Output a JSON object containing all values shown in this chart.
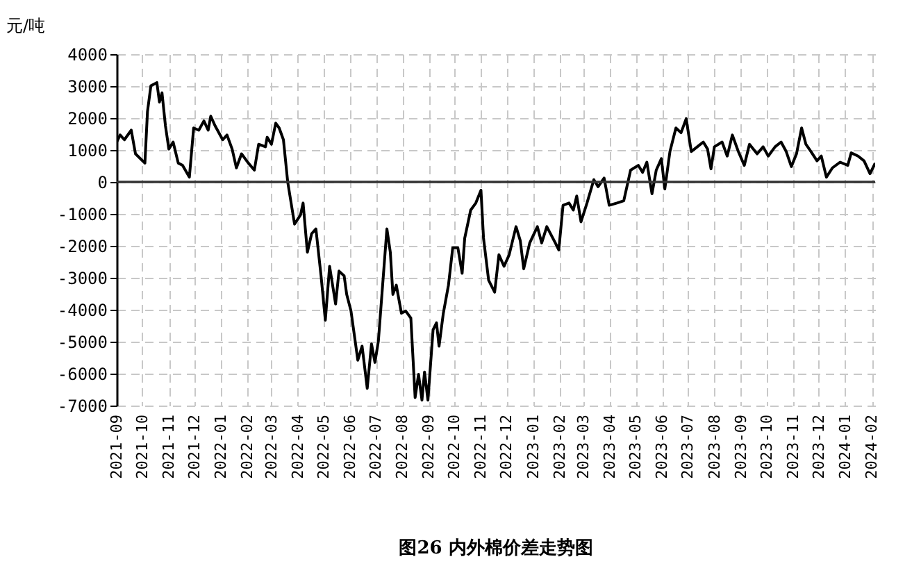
{
  "chart_data": {
    "type": "line",
    "title": "图26   内外棉价差走势图",
    "ylabel": "元/吨",
    "xlim": [
      "2021-09-01",
      "2024-02-05"
    ],
    "xticks": [
      "2021-09",
      "2021-10",
      "2021-11",
      "2021-12",
      "2022-01",
      "2022-02",
      "2022-03",
      "2022-04",
      "2022-05",
      "2022-06",
      "2022-07",
      "2022-08",
      "2022-09",
      "2022-10",
      "2022-11",
      "2022-12",
      "2023-01",
      "2023-02",
      "2023-03",
      "2023-04",
      "2023-05",
      "2023-06",
      "2023-07",
      "2023-08",
      "2023-09",
      "2023-10",
      "2023-11",
      "2023-12",
      "2024-01",
      "2024-02"
    ],
    "ylim": [
      -7000,
      4000
    ],
    "yticks": [
      -7000,
      -6000,
      -5000,
      -4000,
      -3000,
      -2000,
      -1000,
      0,
      1000,
      2000,
      3000,
      4000
    ],
    "grid": true,
    "ref_lines": [
      {
        "axis": "y",
        "value": 0,
        "color": "#333333"
      }
    ],
    "series": [
      {
        "color": "#000000",
        "x": [
          "2021-09-01",
          "2021-09-05",
          "2021-09-10",
          "2021-09-18",
          "2021-09-23",
          "2021-10-04",
          "2021-10-07",
          "2021-10-11",
          "2021-10-18",
          "2021-10-21",
          "2021-10-24",
          "2021-10-28",
          "2021-11-01",
          "2021-11-06",
          "2021-11-12",
          "2021-11-17",
          "2021-11-25",
          "2021-11-30",
          "2021-12-06",
          "2021-12-12",
          "2021-12-17",
          "2021-12-20",
          "2021-12-25",
          "2022-01-03",
          "2022-01-08",
          "2022-01-14",
          "2022-01-19",
          "2022-01-25",
          "2022-02-02",
          "2022-02-09",
          "2022-02-14",
          "2022-02-22",
          "2022-02-24",
          "2022-03-01",
          "2022-03-06",
          "2022-03-10",
          "2022-03-15",
          "2022-03-20",
          "2022-03-28",
          "2022-04-04",
          "2022-04-07",
          "2022-04-12",
          "2022-04-17",
          "2022-04-22",
          "2022-04-28",
          "2022-05-03",
          "2022-05-08",
          "2022-05-15",
          "2022-05-19",
          "2022-05-25",
          "2022-05-28",
          "2022-06-02",
          "2022-06-10",
          "2022-06-15",
          "2022-06-21",
          "2022-06-26",
          "2022-06-30",
          "2022-07-04",
          "2022-07-09",
          "2022-07-14",
          "2022-07-18",
          "2022-07-21",
          "2022-07-25",
          "2022-07-31",
          "2022-08-05",
          "2022-08-11",
          "2022-08-16",
          "2022-08-20",
          "2022-08-24",
          "2022-08-27",
          "2022-08-31",
          "2022-09-06",
          "2022-09-10",
          "2022-09-13",
          "2022-09-18",
          "2022-09-24",
          "2022-09-29",
          "2022-10-05",
          "2022-10-10",
          "2022-10-13",
          "2022-10-20",
          "2022-10-26",
          "2022-11-01",
          "2022-11-04",
          "2022-11-10",
          "2022-11-17",
          "2022-11-22",
          "2022-11-28",
          "2022-12-04",
          "2022-12-12",
          "2022-12-17",
          "2022-12-21",
          "2022-12-28",
          "2023-01-06",
          "2023-01-11",
          "2023-01-17",
          "2023-01-27",
          "2023-01-31",
          "2023-02-05",
          "2023-02-12",
          "2023-02-17",
          "2023-02-21",
          "2023-02-26",
          "2023-03-05",
          "2023-03-13",
          "2023-03-18",
          "2023-03-25",
          "2023-03-31",
          "2023-04-09",
          "2023-04-17",
          "2023-04-25",
          "2023-05-04",
          "2023-05-09",
          "2023-05-14",
          "2023-05-20",
          "2023-05-25",
          "2023-05-31",
          "2023-06-04",
          "2023-06-10",
          "2023-06-17",
          "2023-06-23",
          "2023-06-29",
          "2023-07-05",
          "2023-07-12",
          "2023-07-19",
          "2023-07-24",
          "2023-07-28",
          "2023-08-01",
          "2023-08-10",
          "2023-08-16",
          "2023-08-22",
          "2023-08-29",
          "2023-09-05",
          "2023-09-11",
          "2023-09-20",
          "2023-09-27",
          "2023-10-03",
          "2023-10-11",
          "2023-10-18",
          "2023-10-24",
          "2023-10-30",
          "2023-11-05",
          "2023-11-11",
          "2023-11-16",
          "2023-11-22",
          "2023-11-29",
          "2023-12-04",
          "2023-12-10",
          "2023-12-17",
          "2023-12-26",
          "2024-01-04",
          "2024-01-08",
          "2024-01-16",
          "2024-01-23",
          "2024-01-30",
          "2024-02-05"
        ],
        "values": [
          1250,
          1470,
          1320,
          1620,
          880,
          590,
          2200,
          3010,
          3110,
          2500,
          2790,
          1760,
          1030,
          1250,
          590,
          520,
          150,
          1690,
          1620,
          1910,
          1620,
          2060,
          1760,
          1320,
          1470,
          1030,
          440,
          880,
          590,
          370,
          1180,
          1100,
          1400,
          1180,
          1840,
          1690,
          1320,
          0,
          -1320,
          -1030,
          -660,
          -2200,
          -1620,
          -1470,
          -2940,
          -4330,
          -2640,
          -3820,
          -2790,
          -2940,
          -3520,
          -4040,
          -5580,
          -5140,
          -6460,
          -5070,
          -5650,
          -4990,
          -3230,
          -1470,
          -2200,
          -3520,
          -3230,
          -4110,
          -4040,
          -4260,
          -6750,
          -6020,
          -6830,
          -5950,
          -6830,
          -4630,
          -4410,
          -5140,
          -4110,
          -3230,
          -2060,
          -2060,
          -2860,
          -1760,
          -880,
          -660,
          -260,
          -1760,
          -3080,
          -3450,
          -2280,
          -2640,
          -2280,
          -1400,
          -1840,
          -2720,
          -1910,
          -1400,
          -1910,
          -1400,
          -1910,
          -2130,
          -730,
          -660,
          -880,
          -440,
          -1250,
          -660,
          70,
          -150,
          120,
          -730,
          -660,
          -590,
          370,
          520,
          300,
          620,
          -370,
          370,
          730,
          -220,
          950,
          1690,
          1540,
          1980,
          950,
          1100,
          1250,
          1030,
          410,
          1100,
          1250,
          810,
          1470,
          950,
          520,
          1180,
          880,
          1100,
          810,
          1100,
          1250,
          950,
          480,
          880,
          1690,
          1180,
          950,
          660,
          810,
          150,
          440,
          620,
          520,
          910,
          810,
          660,
          260,
          590
        ]
      }
    ]
  }
}
